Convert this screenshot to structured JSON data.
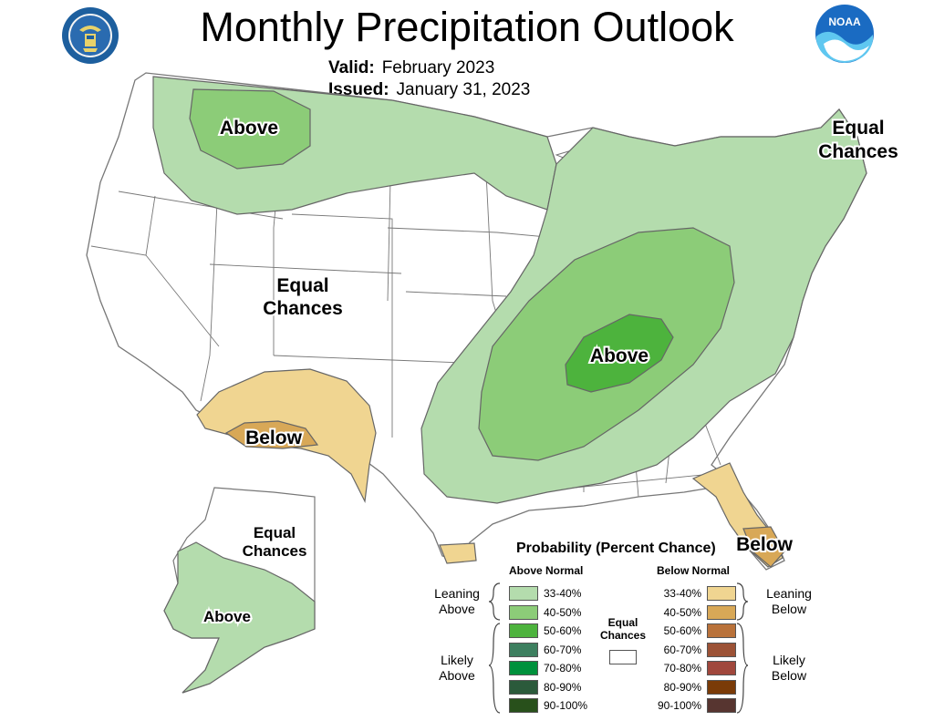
{
  "header": {
    "title": "Monthly Precipitation Outlook",
    "valid_label": "Valid:",
    "valid_value": "February 2023",
    "issued_label": "Issued:",
    "issued_value": "January 31, 2023"
  },
  "logos": {
    "left": "doc-seal-icon",
    "right": "noaa-logo-icon",
    "noaa_text": "NOAA"
  },
  "map_labels": {
    "nw_above": "Above",
    "ne_equal_1": "Equal",
    "ne_equal_2": "Chances",
    "west_equal_1": "Equal",
    "west_equal_2": "Chances",
    "central_above": "Above",
    "sw_below": "Below",
    "fl_below": "Below",
    "ak_equal_1": "Equal",
    "ak_equal_2": "Chances",
    "ak_above": "Above"
  },
  "legend": {
    "title": "Probability (Percent Chance)",
    "above_head": "Above Normal",
    "below_head": "Below Normal",
    "above_rows": [
      {
        "range": "33-40%",
        "color": "#b4dcad"
      },
      {
        "range": "40-50%",
        "color": "#8ccc78"
      },
      {
        "range": "50-60%",
        "color": "#4db33d"
      },
      {
        "range": "60-70%",
        "color": "#3d7f5f"
      },
      {
        "range": "70-80%",
        "color": "#00913c"
      },
      {
        "range": "80-90%",
        "color": "#2b5a3b"
      },
      {
        "range": "90-100%",
        "color": "#28501b"
      }
    ],
    "below_rows": [
      {
        "range": "33-40%",
        "color": "#f0d591"
      },
      {
        "range": "40-50%",
        "color": "#d8a857"
      },
      {
        "range": "50-60%",
        "color": "#b9723a"
      },
      {
        "range": "60-70%",
        "color": "#9c5236"
      },
      {
        "range": "70-80%",
        "color": "#a0473c"
      },
      {
        "range": "80-90%",
        "color": "#7a3b08"
      },
      {
        "range": "90-100%",
        "color": "#573530"
      }
    ],
    "leaning_above": "Leaning Above",
    "likely_above": "Likely Above",
    "leaning_below": "Leaning Below",
    "likely_below": "Likely Below",
    "equal_chances": "Equal Chances",
    "equal_color": "#ffffff"
  }
}
